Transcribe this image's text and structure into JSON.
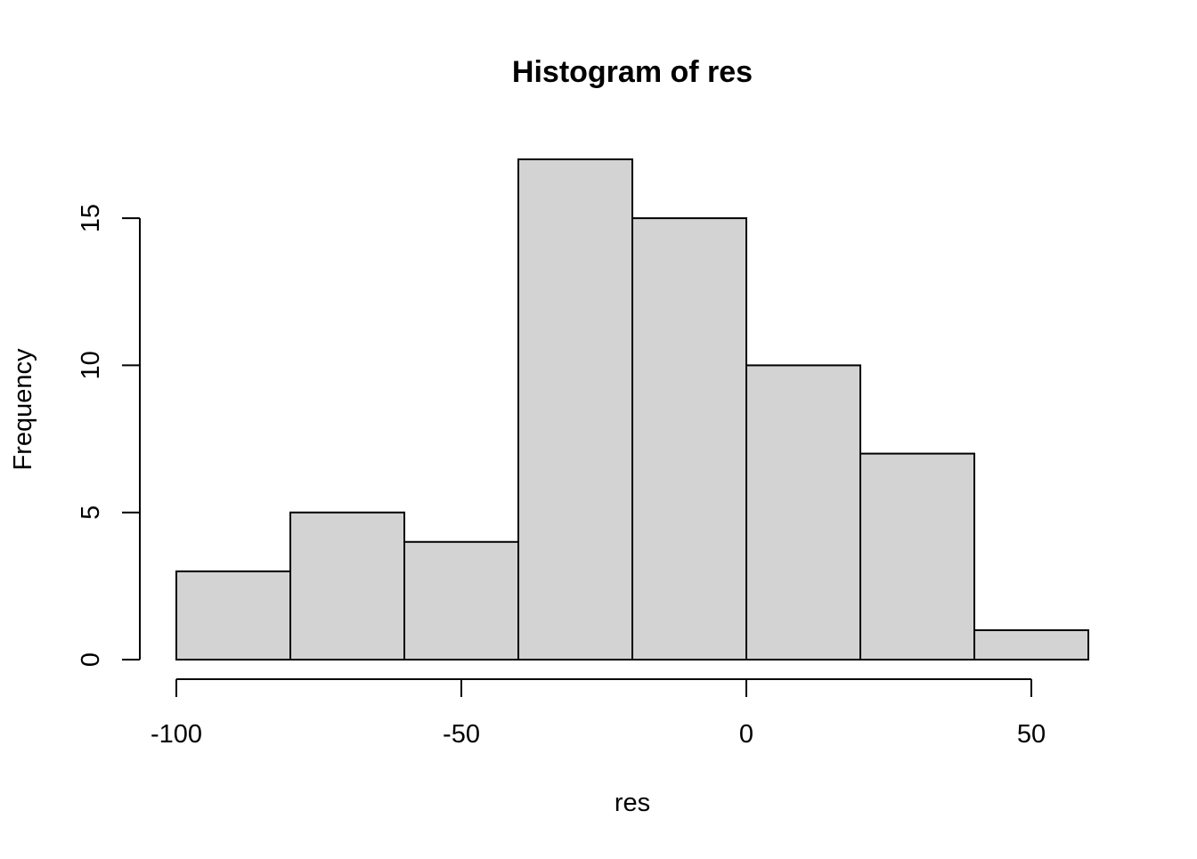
{
  "chart_data": {
    "type": "bar",
    "title": "Histogram of res",
    "xlabel": "res",
    "ylabel": "Frequency",
    "bins": [
      {
        "start": -100,
        "end": -80,
        "count": 3
      },
      {
        "start": -80,
        "end": -60,
        "count": 5
      },
      {
        "start": -60,
        "end": -40,
        "count": 4
      },
      {
        "start": -40,
        "end": -20,
        "count": 17
      },
      {
        "start": -20,
        "end": 0,
        "count": 15
      },
      {
        "start": 0,
        "end": 20,
        "count": 10
      },
      {
        "start": 20,
        "end": 40,
        "count": 7
      },
      {
        "start": 40,
        "end": 60,
        "count": 1
      }
    ],
    "x_ticks": [
      -100,
      -50,
      0,
      50
    ],
    "x_tick_labels": [
      "-100",
      "-50",
      "0",
      "50"
    ],
    "y_ticks": [
      0,
      5,
      10,
      15
    ],
    "y_tick_labels": [
      "0",
      "5",
      "10",
      "15"
    ],
    "xlim": [
      -100,
      60
    ],
    "ylim": [
      0,
      17
    ],
    "grid": false,
    "legend": "none",
    "bar_fill": "#d3d3d3",
    "bar_stroke": "#000000"
  }
}
